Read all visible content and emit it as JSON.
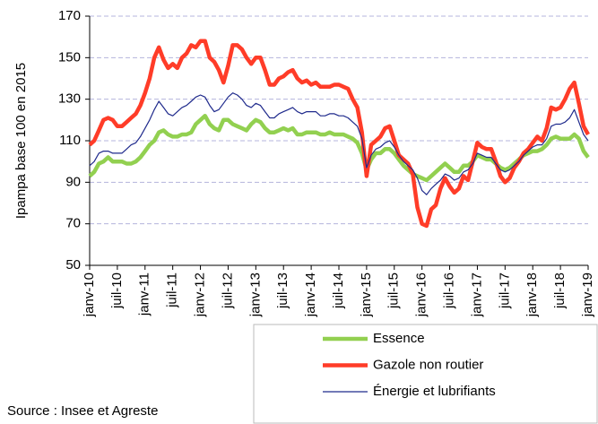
{
  "chart_data": {
    "type": "line",
    "y_label": "Ipampa base 100 en 2015",
    "source": "Source : Insee et Agreste",
    "categories": [
      "janv-10",
      null,
      null,
      null,
      null,
      null,
      "juil-10",
      null,
      null,
      null,
      null,
      null,
      "janv-11",
      null,
      null,
      null,
      null,
      null,
      "juil-11",
      null,
      null,
      null,
      null,
      null,
      "janv-12",
      null,
      null,
      null,
      null,
      null,
      "juil-12",
      null,
      null,
      null,
      null,
      null,
      "janv-13",
      null,
      null,
      null,
      null,
      null,
      "juil-13",
      null,
      null,
      null,
      null,
      null,
      "janv-14",
      null,
      null,
      null,
      null,
      null,
      "juil-14",
      null,
      null,
      null,
      null,
      null,
      "janv-15",
      null,
      null,
      null,
      null,
      null,
      "juil-15",
      null,
      null,
      null,
      null,
      null,
      "janv-16",
      null,
      null,
      null,
      null,
      null,
      "juil-16",
      null,
      null,
      null,
      null,
      null,
      "janv-17",
      null,
      null,
      null,
      null,
      null,
      "juil-17",
      null,
      null,
      null,
      null,
      null,
      "janv-18",
      null,
      null,
      null,
      null,
      null,
      "juil-18",
      null,
      null,
      null,
      null,
      null,
      "janv-19"
    ],
    "series": [
      {
        "name": "Essence",
        "color": "#92d050",
        "width": 4.5,
        "values": [
          93,
          95,
          99,
          100,
          102,
          100,
          100,
          100,
          99,
          99,
          100,
          102,
          105,
          108,
          110,
          114,
          115,
          113,
          112,
          112,
          113,
          113,
          114,
          118,
          120,
          122,
          118,
          116,
          115,
          120,
          120,
          118,
          117,
          116,
          115,
          118,
          120,
          119,
          116,
          114,
          114,
          115,
          116,
          115,
          116,
          113,
          113,
          114,
          114,
          114,
          113,
          113,
          114,
          113,
          113,
          113,
          112,
          111,
          109,
          104,
          96,
          101,
          104,
          104,
          106,
          106,
          104,
          101,
          98,
          96,
          94,
          93,
          92,
          91,
          93,
          95,
          97,
          99,
          97,
          95,
          95,
          98,
          98,
          100,
          103,
          102,
          101,
          101,
          99,
          97,
          96,
          97,
          99,
          101,
          103,
          104,
          105,
          105,
          106,
          108,
          111,
          112,
          111,
          111,
          111,
          113,
          111,
          105,
          102
        ]
      },
      {
        "name": "Gazole non routier",
        "color": "#ff3c28",
        "width": 4.5,
        "values": [
          108,
          110,
          115,
          120,
          121,
          120,
          117,
          117,
          119,
          121,
          123,
          127,
          133,
          140,
          150,
          155,
          149,
          145,
          147,
          145,
          150,
          152,
          156,
          155,
          158,
          158,
          150,
          148,
          144,
          138,
          146,
          156,
          156,
          154,
          150,
          147,
          150,
          150,
          144,
          137,
          137,
          140,
          141,
          143,
          144,
          140,
          138,
          139,
          137,
          138,
          136,
          136,
          136,
          137,
          137,
          136,
          135,
          130,
          126,
          114,
          93,
          108,
          110,
          112,
          116,
          117,
          110,
          103,
          101,
          99,
          94,
          78,
          70,
          69,
          77,
          79,
          87,
          92,
          88,
          85,
          87,
          93,
          91,
          100,
          109,
          107,
          106,
          106,
          100,
          93,
          90,
          92,
          97,
          100,
          104,
          106,
          109,
          112,
          110,
          116,
          126,
          125,
          126,
          130,
          135,
          138,
          128,
          117,
          113
        ]
      },
      {
        "name": "Énergie et lubrifiants",
        "color": "#1f2a8c",
        "width": 1.2,
        "values": [
          98,
          100,
          104,
          105,
          105,
          104,
          104,
          104,
          106,
          108,
          109,
          112,
          116,
          120,
          125,
          129,
          126,
          123,
          122,
          124,
          126,
          127,
          129,
          131,
          132,
          131,
          127,
          124,
          125,
          128,
          131,
          133,
          132,
          130,
          127,
          126,
          128,
          127,
          124,
          121,
          121,
          123,
          124,
          125,
          126,
          124,
          123,
          124,
          124,
          124,
          122,
          122,
          123,
          123,
          122,
          122,
          121,
          119,
          117,
          111,
          97,
          103,
          106,
          107,
          109,
          110,
          107,
          103,
          100,
          98,
          96,
          92,
          86,
          84,
          87,
          89,
          91,
          94,
          93,
          91,
          92,
          95,
          96,
          99,
          104,
          103,
          102,
          102,
          99,
          96,
          95,
          96,
          98,
          100,
          103,
          105,
          107,
          108,
          108,
          111,
          117,
          118,
          118,
          119,
          121,
          125,
          119,
          113,
          110
        ]
      }
    ],
    "ylim": [
      50,
      170
    ],
    "yticks": [
      50,
      70,
      90,
      110,
      130,
      150,
      170
    ],
    "grid": true
  }
}
